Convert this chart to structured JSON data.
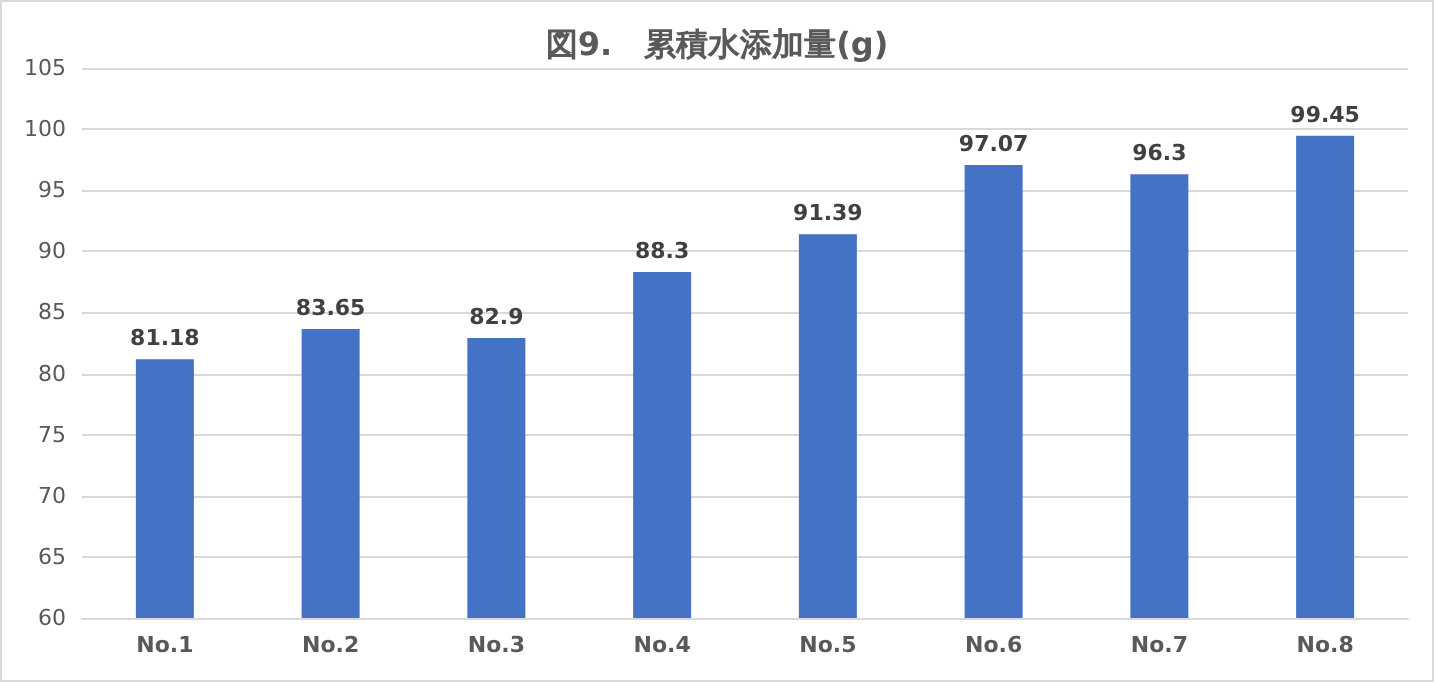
{
  "chart_data": {
    "type": "bar",
    "title": "図9.　累積水添加量(g)",
    "categories": [
      "No.1",
      "No.2",
      "No.3",
      "No.4",
      "No.5",
      "No.6",
      "No.7",
      "No.8"
    ],
    "values": [
      81.18,
      83.65,
      82.9,
      88.3,
      91.39,
      97.07,
      96.3,
      99.45
    ],
    "color": "#4472c4",
    "ylim": [
      60,
      105
    ],
    "yticks": [
      60,
      65,
      70,
      75,
      80,
      85,
      90,
      95,
      100,
      105
    ],
    "grid": "y",
    "data_labels": true
  }
}
